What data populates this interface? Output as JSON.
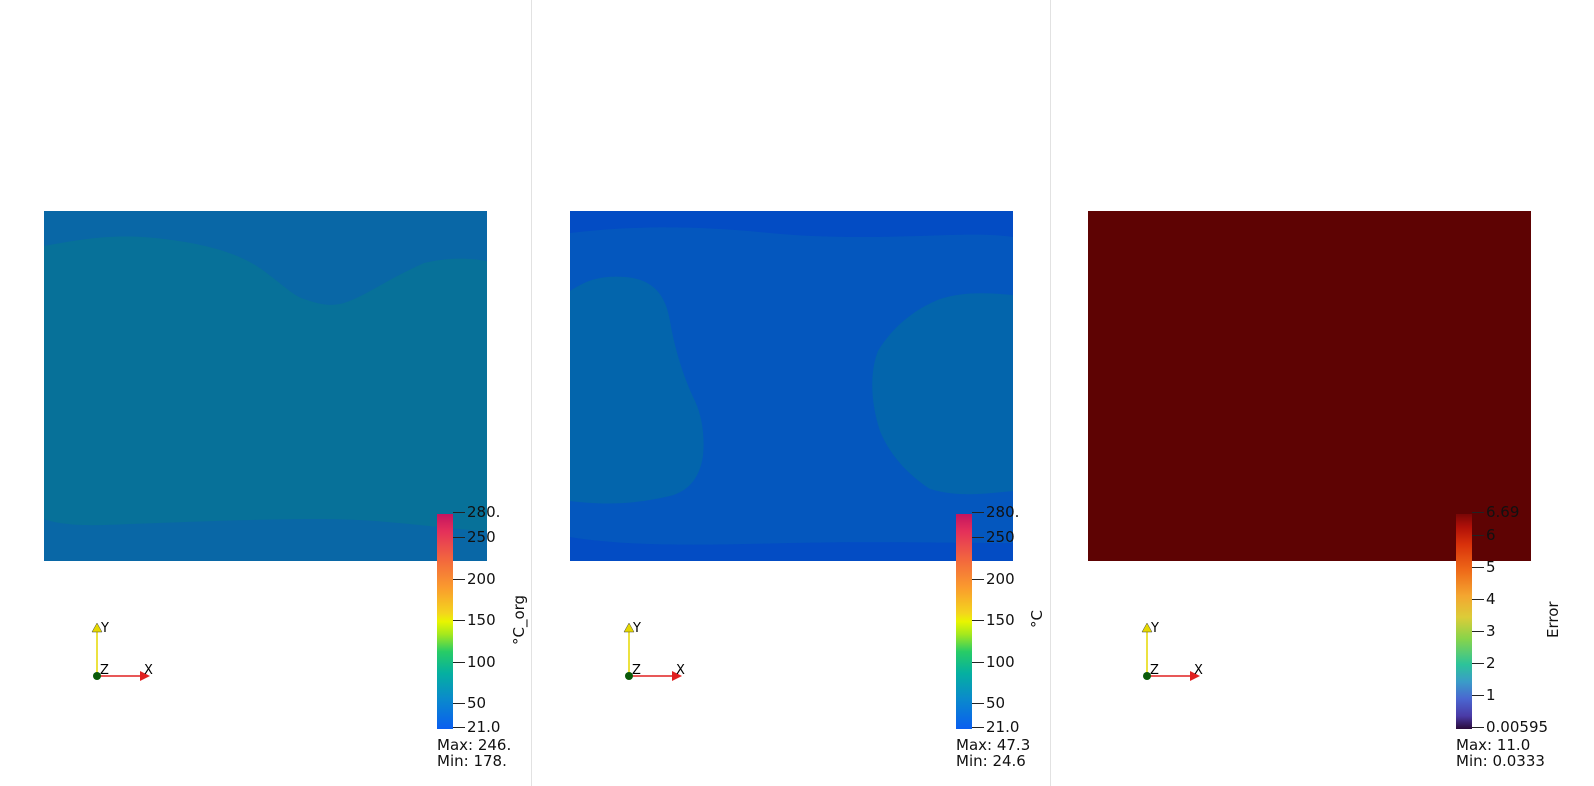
{
  "views": [
    {
      "id": "original",
      "colorbar": {
        "title": "°C_org",
        "ticks": [
          "280.",
          "250",
          "200",
          "150",
          "100",
          "50",
          "21.0"
        ],
        "max_label": "Max: 246.",
        "min_label": "Min: 178."
      },
      "field_colors": {
        "edge": "#0967a6",
        "core": "#077199"
      }
    },
    {
      "id": "predicted",
      "colorbar": {
        "title": "°C",
        "ticks": [
          "280.",
          "250",
          "200",
          "150",
          "100",
          "50",
          "21.0"
        ],
        "max_label": "Max: 47.3",
        "min_label": "Min: 24.6"
      },
      "field_colors": {
        "edge": "#034cc4",
        "mid": "#0457be",
        "core": "#0365ac"
      }
    },
    {
      "id": "error",
      "colorbar": {
        "title": "Error",
        "ticks": [
          "6.69",
          "6",
          "5",
          "4",
          "3",
          "2",
          "1",
          "0.00595"
        ],
        "max_label": "Max: 11.0",
        "min_label": "Min: 0.0333"
      },
      "field_colors": {
        "fill": "#5e0303"
      }
    }
  ],
  "axes": {
    "y_label": "Y",
    "x_label": "X",
    "z_label": "Z",
    "y_color": "#e6d800",
    "x_color": "#e02020",
    "z_color": "#0a5a0a"
  }
}
